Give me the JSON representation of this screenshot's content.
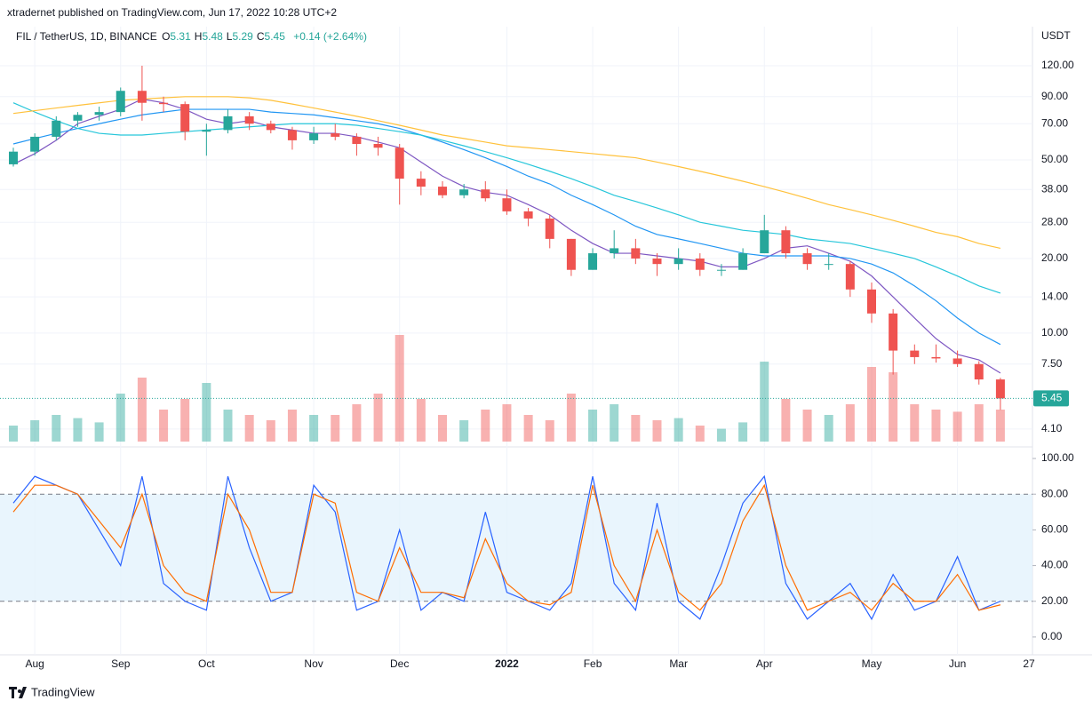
{
  "header": {
    "published": "xtradernet published on TradingView.com, Jun 17, 2022 10:28 UTC+2",
    "symbol": "FIL / TetherUS, 1D, BINANCE",
    "ohlc": [
      {
        "label": "O",
        "value": 5.31
      },
      {
        "label": "H",
        "value": 5.48
      },
      {
        "label": "L",
        "value": 5.29
      },
      {
        "label": "C",
        "value": 5.45
      }
    ],
    "change": "+0.14 (+2.64%)",
    "currency": "USDT",
    "brand": "TradingView"
  },
  "chart_data": [
    {
      "type": "candlestick",
      "categories": [
        null,
        "Aug",
        null,
        null,
        null,
        "Sep",
        null,
        null,
        null,
        "Oct",
        null,
        null,
        null,
        null,
        "Nov",
        null,
        null,
        null,
        "Dec",
        null,
        null,
        null,
        null,
        "2022",
        null,
        null,
        null,
        "Feb",
        null,
        null,
        null,
        "Mar",
        null,
        null,
        null,
        "Apr",
        null,
        null,
        null,
        null,
        "May",
        null,
        null,
        null,
        "Jun",
        null,
        null
      ],
      "open": [
        48,
        54,
        62,
        72,
        76,
        78,
        95,
        85,
        84,
        65,
        66,
        75,
        70,
        66,
        60,
        64,
        62,
        58,
        56,
        42,
        39,
        36,
        38,
        35,
        31,
        29,
        24,
        18,
        21,
        22,
        20,
        19,
        20,
        18,
        18,
        21,
        26,
        21,
        19,
        19,
        15,
        12,
        8.5,
        8,
        7.9,
        7.5,
        6.5
      ],
      "high": [
        56,
        64,
        75,
        78,
        82,
        98,
        120,
        90,
        86,
        70,
        80,
        78,
        72,
        68,
        68,
        70,
        64,
        62,
        58,
        45,
        41,
        40,
        41,
        38,
        32,
        30,
        24,
        22,
        26,
        24,
        21,
        22,
        21,
        19,
        22,
        30,
        27,
        22,
        21,
        19.5,
        16,
        12.5,
        9,
        9,
        8.5,
        7.7,
        6.6
      ],
      "low": [
        47,
        52,
        60,
        68,
        72,
        75,
        72,
        78,
        60,
        52,
        64,
        66,
        64,
        55,
        58,
        60,
        52,
        52,
        33,
        36,
        35,
        35,
        34,
        30,
        27,
        22,
        17,
        18,
        20,
        19,
        17,
        18,
        17,
        17,
        18,
        21,
        20,
        18,
        18,
        14,
        11,
        6.8,
        7.5,
        7.6,
        7.3,
        6.2,
        4.9
      ],
      "close": [
        54,
        62,
        72,
        76,
        78,
        95,
        85,
        84,
        65,
        66,
        75,
        70,
        66,
        60,
        64,
        62,
        58,
        56,
        42,
        39,
        36,
        38,
        35,
        31,
        29,
        24,
        18,
        21,
        22,
        20,
        19,
        20,
        18,
        18,
        21,
        26,
        21,
        19,
        19,
        15,
        12,
        8.5,
        8,
        7.9,
        7.5,
        6.5,
        5.45
      ],
      "up_color": "#26a69a",
      "down_color": "#ef5350",
      "log_scale": true,
      "grid": true,
      "ylim": [
        3.56,
        172.5
      ],
      "yticks": [
        {
          "value": 4.1,
          "label": "4.10"
        },
        {
          "value": 7.5,
          "label": "7.50"
        },
        {
          "value": 10,
          "label": "10.00"
        },
        {
          "value": 14,
          "label": "14.00"
        },
        {
          "value": 20,
          "label": "20.00"
        },
        {
          "value": 28,
          "label": "28.00"
        },
        {
          "value": 38,
          "label": "38.00"
        },
        {
          "value": 50,
          "label": "50.00"
        },
        {
          "value": 70,
          "label": "70.00"
        },
        {
          "value": 90,
          "label": "90.00"
        },
        {
          "value": 120,
          "label": "120.00"
        }
      ],
      "x_future_labels": [
        "27"
      ],
      "volume": [
        15,
        20,
        25,
        22,
        18,
        45,
        60,
        30,
        40,
        55,
        30,
        25,
        20,
        30,
        25,
        25,
        35,
        45,
        100,
        40,
        25,
        20,
        30,
        35,
        25,
        20,
        45,
        30,
        35,
        25,
        20,
        22,
        15,
        12,
        18,
        75,
        40,
        30,
        25,
        35,
        70,
        65,
        35,
        30,
        28,
        35,
        30
      ],
      "moving_averages": [
        {
          "color": "#7e57c2",
          "values": [
            48,
            53,
            60,
            70,
            75,
            80,
            88,
            85,
            80,
            73,
            70,
            72,
            68,
            66,
            64,
            64,
            62,
            59,
            56,
            49,
            43,
            39,
            37,
            36,
            33,
            30,
            26,
            23,
            21,
            21,
            20.5,
            20,
            19.5,
            18.5,
            18.5,
            20,
            22,
            22.5,
            21,
            19.5,
            17,
            14,
            11.5,
            9.5,
            8.2,
            7.8,
            6.9
          ]
        },
        {
          "color": "#2196f3",
          "values": [
            58,
            61,
            64,
            67,
            70,
            73,
            76,
            78,
            80,
            80,
            80,
            80,
            78,
            77,
            76,
            74,
            72,
            70,
            67,
            63,
            59,
            55,
            51,
            47,
            43,
            40,
            36,
            33,
            30,
            27,
            25,
            24,
            23,
            22,
            21,
            20.5,
            20.5,
            20.5,
            20.5,
            20,
            19,
            17.5,
            15.5,
            13.5,
            11.5,
            10,
            9
          ]
        },
        {
          "color": "#26c6da",
          "values": [
            85,
            78,
            72,
            67,
            64,
            63,
            63,
            64,
            65,
            66,
            67,
            68,
            69,
            70,
            70,
            70,
            69,
            67,
            65,
            63,
            60,
            57,
            54,
            51,
            48,
            45,
            42,
            39,
            36,
            34,
            32,
            30,
            28,
            27,
            26,
            25.5,
            25,
            24,
            23.5,
            23,
            22,
            21,
            20,
            18.5,
            17,
            15.5,
            14.5
          ]
        },
        {
          "color": "#ffc13b",
          "values": [
            77,
            79,
            81,
            83,
            85,
            87,
            88,
            89,
            90,
            90,
            90,
            89,
            87,
            84,
            81,
            78,
            75,
            72,
            69,
            66,
            63,
            61,
            59,
            57,
            56,
            55,
            54,
            53,
            52,
            51,
            49,
            47,
            45,
            43,
            41,
            39,
            37,
            35,
            33,
            31.5,
            30,
            28.5,
            27,
            25.5,
            24.5,
            23,
            22
          ]
        }
      ]
    },
    {
      "type": "line",
      "ylim": [
        -9,
        105.5
      ],
      "yticks": [
        {
          "value": 0,
          "label": "0.00"
        },
        {
          "value": 20,
          "label": "20.00"
        },
        {
          "value": 40,
          "label": "40.00"
        },
        {
          "value": 60,
          "label": "60.00"
        },
        {
          "value": 80,
          "label": "80.00"
        },
        {
          "value": 100,
          "label": "100.00"
        }
      ],
      "band": [
        20,
        80
      ],
      "band_color": "#e3f2fd",
      "series": [
        {
          "color": "#2962ff",
          "values": [
            75,
            90,
            85,
            80,
            60,
            40,
            90,
            30,
            20,
            15,
            90,
            50,
            20,
            25,
            85,
            70,
            15,
            20,
            60,
            15,
            25,
            20,
            70,
            25,
            20,
            15,
            30,
            90,
            30,
            15,
            75,
            20,
            10,
            40,
            75,
            90,
            30,
            10,
            20,
            30,
            10,
            35,
            15,
            20,
            45,
            15,
            20
          ]
        },
        {
          "color": "#ff6d00",
          "values": [
            70,
            85,
            85,
            80,
            65,
            50,
            80,
            40,
            25,
            20,
            80,
            60,
            25,
            25,
            80,
            75,
            25,
            20,
            50,
            25,
            25,
            22,
            55,
            30,
            20,
            18,
            25,
            85,
            40,
            20,
            60,
            25,
            15,
            30,
            65,
            85,
            40,
            15,
            20,
            25,
            15,
            30,
            20,
            20,
            35,
            15,
            18
          ]
        }
      ]
    }
  ]
}
